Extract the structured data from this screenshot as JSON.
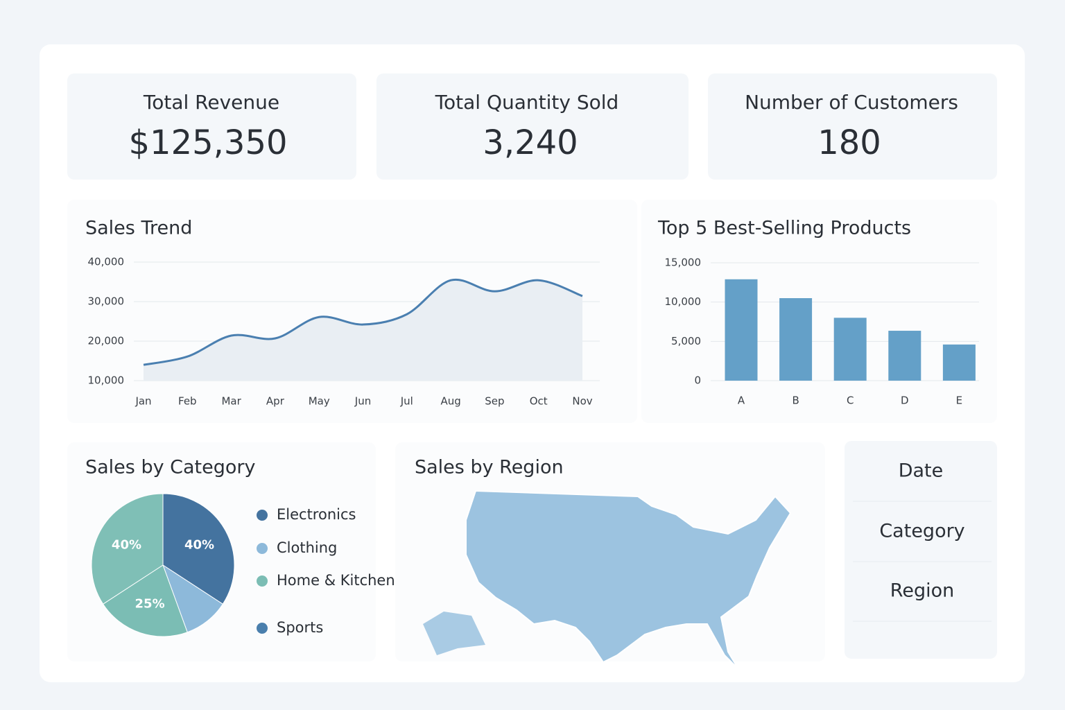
{
  "kpis": [
    {
      "label": "Total Revenue",
      "value": "$125,350"
    },
    {
      "label": "Total Quantity Sold",
      "value": "3,240"
    },
    {
      "label": "Number of Customers",
      "value": "180"
    }
  ],
  "chart_data": [
    {
      "type": "line",
      "title": "Sales Trend",
      "categories": [
        "Jan",
        "Feb",
        "Mar",
        "Apr",
        "May",
        "Jun",
        "Jul",
        "Aug",
        "Sep",
        "Oct",
        "Nov"
      ],
      "series": [
        {
          "color": "#4a7fb0",
          "values": [
            14000,
            16100,
            21400,
            20700,
            26100,
            24200,
            26800,
            35400,
            32600,
            35400,
            31400
          ]
        }
      ],
      "ylim": [
        10000,
        40000
      ],
      "yticks": [
        {
          "value": 10000,
          "label": "10,000"
        },
        {
          "value": 20000,
          "label": "20,000"
        },
        {
          "value": 30000,
          "label": "30,000"
        },
        {
          "value": 40000,
          "label": "40,000"
        }
      ],
      "grid": true,
      "area": true
    },
    {
      "type": "bar",
      "title": "Top 5 Best-Selling Products",
      "categories": [
        "A",
        "B",
        "C",
        "D",
        "E"
      ],
      "values": [
        12900,
        10500,
        8000,
        6350,
        4600
      ],
      "color": "#64a0c8",
      "ylim": [
        0,
        15000
      ],
      "yticks": [
        0,
        {
          "value": 5000,
          "label": "5,000"
        },
        {
          "value": 10000,
          "label": "10,000"
        },
        {
          "value": 15000,
          "label": "15,000"
        }
      ],
      "grid": true
    },
    {
      "type": "pie",
      "title": "Sales by Category",
      "categories": [
        "Electronics",
        "Clothing",
        "Home & Kitchen",
        "Sports"
      ],
      "values": [
        40,
        12,
        25,
        40
      ],
      "value_labels": [
        "40%",
        null,
        "25%",
        "40%"
      ],
      "colors": [
        "#44739f",
        "#8db9da",
        "#7bbdb4",
        "#7fbfb6"
      ],
      "legend_colors": [
        "#44739f",
        "#8db9da",
        "#7bbdb4",
        "#4a7fad"
      ]
    }
  ],
  "map": {
    "title": "Sales by Region"
  },
  "filters": [
    "Date",
    "Category",
    "Region"
  ]
}
